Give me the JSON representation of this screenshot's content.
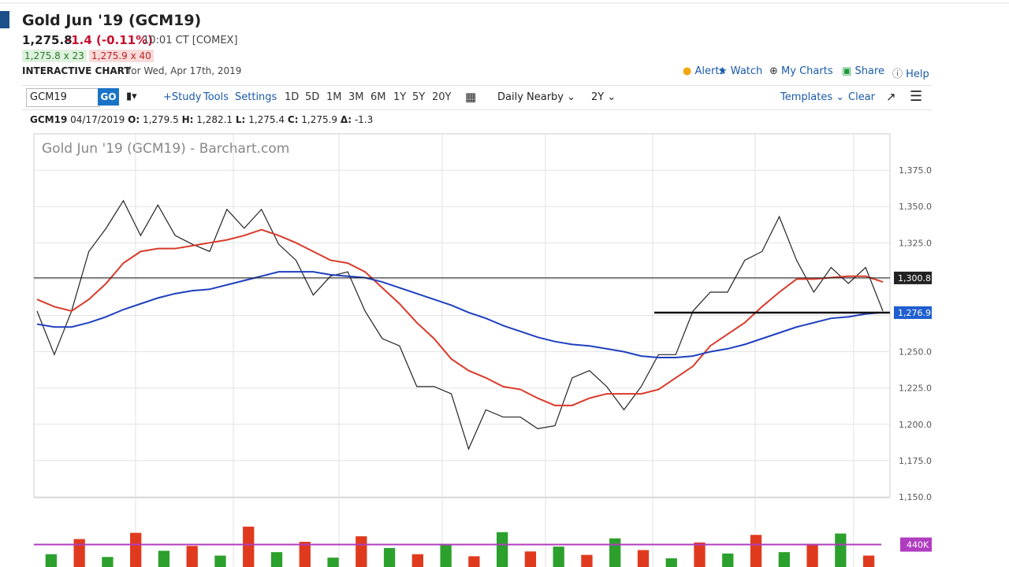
{
  "header": {
    "title": "Gold Jun '19 (GCM19)",
    "last": "1,275.8",
    "change": "-1.4 (-0.11%)",
    "time": "10:01 CT [COMEX]",
    "bid": "1,275.8 x 23",
    "ask": "1,275.9 x 40",
    "chart_label": "INTERACTIVE CHART",
    "date": "for Wed, Apr 17th, 2019"
  },
  "links": [
    "Alerts",
    "Watch",
    "My Charts",
    "Share",
    "Help"
  ],
  "toolbar": {
    "symbol": "GCM19",
    "go": "GO",
    "study": "+Study",
    "tools": "Tools",
    "settings": "Settings",
    "ranges": [
      "1D",
      "5D",
      "1M",
      "3M",
      "6M",
      "1Y",
      "5Y",
      "20Y"
    ],
    "aggregation": "Daily Nearby",
    "period": "2Y",
    "templates": "Templates",
    "clear": "Clear"
  },
  "quote": {
    "symbol": "GCM19",
    "date": "04/17/2019",
    "open_label": "O:",
    "open": "1,279.5",
    "high_label": "H:",
    "high": "1,282.1",
    "low_label": "L:",
    "low": "1,275.4",
    "close_label": "C:",
    "close": "1,275.9",
    "change_label": "Δ:",
    "change": "-1.3"
  },
  "chart_data": {
    "type": "line",
    "title": "Gold Jun '19 (GCM19) - Barchart.com",
    "ylim": [
      1150,
      1400
    ],
    "yticks": [
      {
        "value": 1150,
        "label": "1,150.0"
      },
      {
        "value": 1175,
        "label": "1,175.0"
      },
      {
        "value": 1200,
        "label": "1,200.0"
      },
      {
        "value": 1225,
        "label": "1,225.0"
      },
      {
        "value": 1250,
        "label": "1,250.0"
      },
      {
        "value": 1275,
        "label": "1,275.0"
      },
      {
        "value": 1300,
        "label": "1,300.0"
      },
      {
        "value": 1325,
        "label": "1,325.0"
      },
      {
        "value": 1350,
        "label": "1,350.0"
      },
      {
        "value": 1375,
        "label": "1,375.0"
      }
    ],
    "grid": true,
    "series": [
      {
        "color": "#222222",
        "values": [
          1278,
          1248,
          1278,
          1319,
          1335,
          1354,
          1330,
          1351,
          1330,
          1324,
          1319,
          1348,
          1335,
          1348,
          1324,
          1313,
          1289,
          1302,
          1305,
          1278,
          1259,
          1254,
          1226,
          1226,
          1221,
          1183,
          1210,
          1205,
          1205,
          1197,
          1199,
          1232,
          1237,
          1226,
          1210,
          1226,
          1248,
          1248,
          1278,
          1291,
          1291,
          1313,
          1319,
          1343,
          1313,
          1291,
          1308,
          1297,
          1308,
          1278
        ]
      },
      {
        "color": "#d93a2b",
        "values": [
          1286,
          1281,
          1278,
          1286,
          1297,
          1311,
          1319,
          1321,
          1321,
          1323,
          1325,
          1327,
          1330,
          1334,
          1330,
          1325,
          1319,
          1313,
          1311,
          1305,
          1294,
          1283,
          1270,
          1259,
          1245,
          1237,
          1232,
          1226,
          1224,
          1218,
          1213,
          1213,
          1218,
          1221,
          1221,
          1221,
          1224,
          1232,
          1240,
          1254,
          1262,
          1270,
          1281,
          1291,
          1300,
          1300,
          1301,
          1302,
          1302,
          1298
        ]
      },
      {
        "color": "#1f3fbf",
        "values": [
          1269,
          1267,
          1267,
          1270,
          1274,
          1279,
          1283,
          1287,
          1290,
          1292,
          1293,
          1296,
          1299,
          1302,
          1305,
          1305,
          1305,
          1303,
          1302,
          1301,
          1298,
          1294,
          1290,
          1286,
          1282,
          1277,
          1273,
          1268,
          1264,
          1260,
          1257,
          1255,
          1254,
          1252,
          1250,
          1247,
          1246,
          1246,
          1247,
          1250,
          1252,
          1255,
          1259,
          1263,
          1267,
          1270,
          1273,
          1274,
          1276,
          1277
        ]
      }
    ],
    "hlines": [
      {
        "value": 1300.8,
        "label": "1,300.8",
        "color": "#222222"
      },
      {
        "value": 1276.9,
        "label": "1,276.9",
        "color": "#1f5fd0"
      }
    ],
    "volume": {
      "vlim": [
        0,
        800000
      ],
      "values": [
        300000,
        520000,
        260000,
        610000,
        350000,
        420000,
        280000,
        700000,
        330000,
        480000,
        250000,
        560000,
        390000,
        300000,
        450000,
        270000,
        620000,
        340000,
        410000,
        290000,
        530000,
        360000,
        240000,
        470000,
        310000,
        580000,
        330000,
        440000,
        600000,
        280000
      ],
      "colors": [
        "#2ca02c",
        "#e03a1e"
      ],
      "average": {
        "value": 440000,
        "label": "440K",
        "color": "#b03cc0"
      }
    }
  }
}
